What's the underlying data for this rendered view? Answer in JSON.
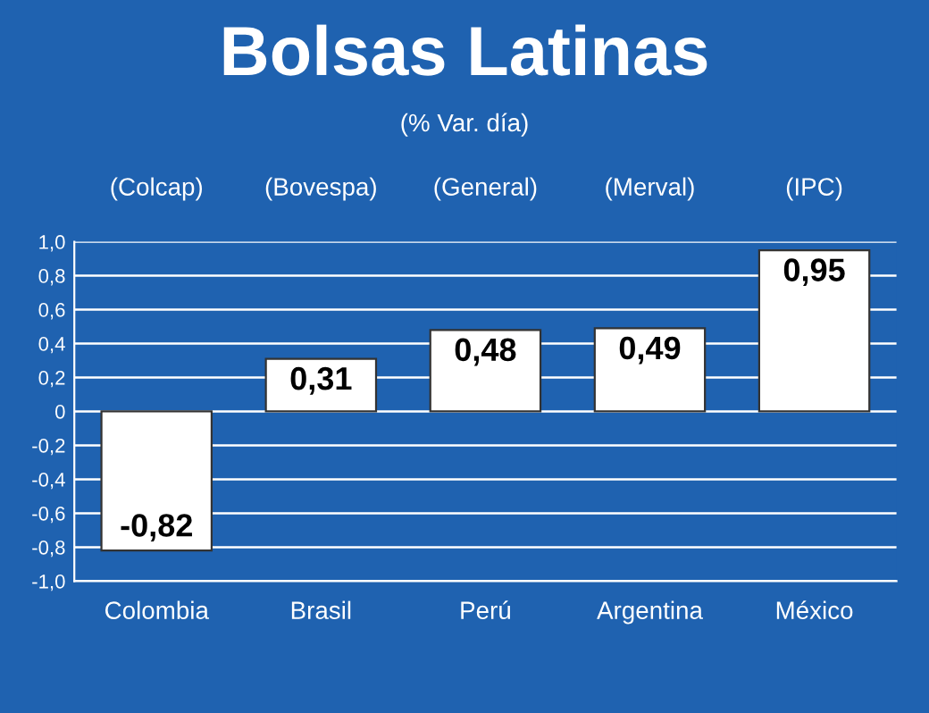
{
  "chart_data": {
    "type": "bar",
    "title": "Bolsas Latinas",
    "subtitle": "(% Var. día)",
    "categories": [
      "Colombia",
      "Brasil",
      "Perú",
      "Argentina",
      "México"
    ],
    "values": [
      -0.82,
      0.31,
      0.48,
      0.49,
      0.95
    ],
    "value_labels": [
      "-0,82",
      "0,31",
      "0,48",
      "0,49",
      "0,95"
    ],
    "color": "#ffffff",
    "annotations": [
      "(Colcap)",
      "(Bovespa)",
      "(General)",
      "(Merval)",
      "(IPC)"
    ],
    "ylim": [
      -1.0,
      1.0
    ],
    "yticks": [
      {
        "value": -1.0,
        "label": "-1,0"
      },
      {
        "value": -0.8,
        "label": "-0,8"
      },
      {
        "value": -0.6,
        "label": "-0,6"
      },
      {
        "value": -0.4,
        "label": "-0,4"
      },
      {
        "value": -0.2,
        "label": "-0,2"
      },
      0,
      {
        "value": 0.2,
        "label": "0,2"
      },
      {
        "value": 0.4,
        "label": "0,4"
      },
      {
        "value": 0.6,
        "label": "0,6"
      },
      {
        "value": 0.8,
        "label": "0,8"
      },
      {
        "value": 1.0,
        "label": "1,0"
      }
    ],
    "grid": "y",
    "legend": false
  }
}
